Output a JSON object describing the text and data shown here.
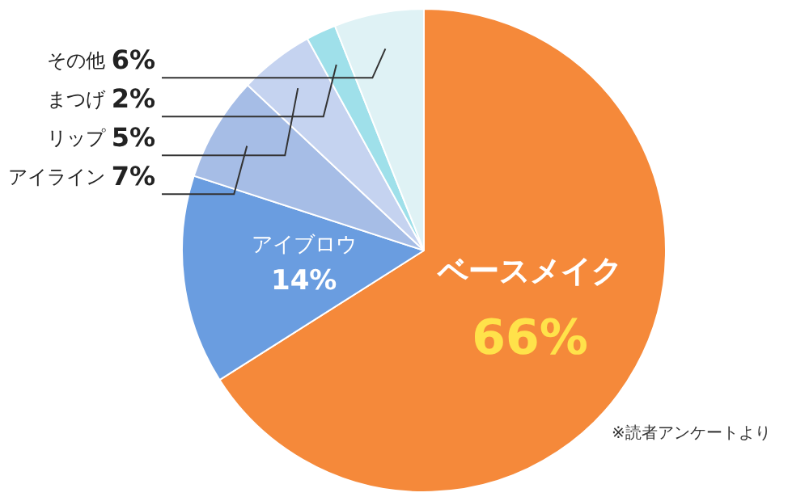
{
  "chart_data": {
    "type": "pie",
    "categories": [
      "ベースメイク",
      "アイブロウ",
      "アイライン",
      "リップ",
      "まつげ",
      "その他"
    ],
    "values": [
      66,
      14,
      7,
      5,
      2,
      6
    ],
    "colors": [
      "#f5893a",
      "#6a9de0",
      "#a6bde6",
      "#c5d3f0",
      "#9fe0ea",
      "#dff2f5"
    ],
    "value_labels": [
      "66%",
      "14%",
      "7%",
      "5%",
      "2%",
      "6%"
    ],
    "legend": false,
    "annotations": [
      "※読者アンケートより"
    ]
  }
}
